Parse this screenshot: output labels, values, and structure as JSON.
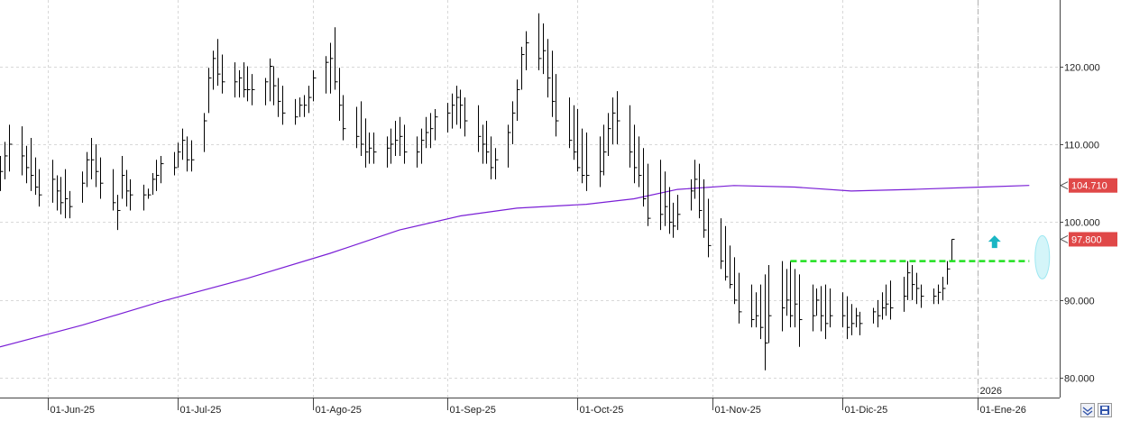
{
  "chart_data": {
    "type": "ohlc",
    "title": "",
    "xlabel": "",
    "ylabel": "",
    "ylim": [
      77.5,
      128.5
    ],
    "xlim": [
      "2025-05-21",
      "2026-01-20"
    ],
    "y_ticks": [
      "80.000",
      "90.000",
      "100.000",
      "110.000",
      "120.000"
    ],
    "y_tick_values": [
      80,
      90,
      100,
      110,
      120
    ],
    "x_ticks": [
      {
        "date": "2025-06-01",
        "label": "01-Jun-25"
      },
      {
        "date": "2025-07-01",
        "label": "01-Jul-25"
      },
      {
        "date": "2025-08-01",
        "label": "01-Ago-25"
      },
      {
        "date": "2025-09-01",
        "label": "01-Sep-25"
      },
      {
        "date": "2025-10-01",
        "label": "01-Oct-25"
      },
      {
        "date": "2025-11-01",
        "label": "01-Nov-25"
      },
      {
        "date": "2025-12-01",
        "label": "01-Dic-25"
      },
      {
        "date": "2026-01-01",
        "label": "01-Ene-26"
      }
    ],
    "year_marker": {
      "date": "2026-01-01",
      "label": "2026"
    },
    "grid": true,
    "price_bars": {
      "start": "2025-05-21",
      "calendar": "weekdays",
      "high": [
        108.5,
        110.3,
        112.5,
        112.3,
        109.8,
        110.8,
        108.3,
        106.8,
        108.0,
        106.0,
        105.8,
        106.8,
        104.0,
        106.5,
        109.0,
        110.8,
        110.0,
        108.3,
        106.8,
        103.5,
        108.5,
        106.7,
        105.5,
        104.8,
        104.3,
        106.3,
        108.0,
        108.5,
        109.0,
        110.2,
        112.0,
        111.0,
        110.5,
        114.0,
        119.8,
        122.0,
        123.5,
        121.5,
        120.5,
        119.5,
        120.5,
        120.0,
        119.0,
        118.5,
        121.0,
        120.0,
        118.5,
        117.5,
        115.8,
        116.0,
        116.3,
        117.5,
        119.5,
        121.3,
        123.0,
        125.0,
        119.8,
        116.3,
        114.8,
        115.5,
        113.3,
        111.5,
        111.5,
        111.0,
        112.0,
        113.0,
        113.5,
        112.5,
        111.0,
        112.0,
        113.5,
        114.0,
        114.5,
        115.3,
        116.5,
        117.5,
        117.0,
        116.0,
        115.0,
        112.5,
        113.0,
        111.0,
        109.5,
        112.5,
        115.5,
        118.3,
        122.5,
        124.5,
        126.8,
        125.5,
        123.5,
        122.0,
        119.0,
        116.0,
        115.0,
        114.5,
        112.0,
        111.5,
        111.0,
        112.5,
        114.0,
        116.0,
        116.8,
        115.0,
        112.5,
        111.0,
        109.5,
        107.5,
        108.0,
        106.5,
        104.5,
        102.5,
        103.5,
        105.5,
        108.0,
        107.5,
        105.5,
        103.0,
        100.5,
        99.5,
        97.0,
        95.5,
        93.5,
        92.0,
        91.0,
        92.0,
        93.3,
        94.5,
        95.0,
        94.0,
        95.0,
        94.0,
        93.3,
        92.0,
        91.5,
        91.8,
        92.0,
        91.5,
        91.0,
        90.5,
        89.5,
        89.0,
        88.5,
        89.0,
        90.0,
        91.0,
        92.0,
        92.5,
        93.0,
        95.0,
        94.5,
        93.5,
        92.0,
        91.5,
        92.0,
        93.0,
        95.0,
        97.8
      ],
      "low": [
        104.0,
        105.5,
        106.5,
        106.0,
        105.0,
        104.0,
        103.5,
        102.0,
        102.5,
        101.5,
        101.0,
        100.5,
        100.5,
        102.5,
        104.5,
        105.5,
        104.5,
        103.0,
        101.5,
        99.0,
        103.0,
        102.0,
        101.5,
        101.5,
        103.0,
        103.5,
        104.0,
        105.0,
        106.0,
        107.0,
        108.0,
        106.5,
        106.5,
        109.0,
        114.0,
        117.0,
        117.5,
        116.5,
        116.0,
        116.0,
        116.0,
        115.5,
        115.0,
        115.0,
        115.5,
        115.0,
        113.5,
        112.5,
        112.5,
        113.5,
        113.5,
        114.0,
        115.5,
        116.5,
        116.5,
        117.0,
        113.0,
        110.5,
        109.5,
        108.5,
        107.0,
        107.5,
        107.5,
        107.0,
        107.5,
        108.5,
        108.5,
        107.5,
        107.0,
        107.5,
        109.5,
        109.5,
        110.5,
        111.5,
        112.0,
        112.5,
        112.0,
        111.0,
        109.0,
        107.5,
        107.5,
        105.5,
        105.5,
        107.0,
        110.0,
        113.0,
        117.0,
        119.5,
        119.5,
        119.0,
        116.0,
        113.5,
        111.0,
        109.5,
        108.0,
        106.5,
        105.0,
        104.0,
        104.5,
        106.0,
        108.5,
        110.0,
        110.0,
        107.0,
        105.0,
        104.5,
        102.0,
        99.5,
        99.0,
        99.5,
        98.5,
        98.0,
        99.0,
        101.5,
        103.0,
        100.5,
        98.0,
        95.5,
        94.0,
        92.5,
        91.5,
        89.5,
        87.0,
        86.5,
        86.5,
        85.0,
        81.0,
        84.5,
        86.0,
        88.0,
        86.5,
        86.5,
        84.0,
        86.0,
        88.0,
        86.0,
        85.0,
        86.5,
        86.5,
        85.0,
        85.5,
        86.5,
        85.5,
        87.0,
        86.5,
        87.5,
        88.0,
        87.5,
        88.5,
        90.0,
        90.0,
        89.5,
        89.0,
        89.5,
        89.5,
        90.0,
        92.0,
        95.0
      ],
      "close": [
        106.5,
        108.5,
        110.0,
        108.5,
        107.0,
        106.0,
        104.5,
        103.5,
        105.5,
        104.0,
        102.5,
        103.0,
        102.0,
        105.0,
        108.0,
        108.0,
        106.5,
        105.0,
        102.5,
        101.5,
        106.0,
        104.0,
        103.5,
        103.5,
        103.5,
        105.5,
        106.0,
        107.5,
        107.0,
        109.0,
        110.5,
        108.0,
        108.0,
        113.0,
        118.5,
        121.0,
        119.0,
        118.0,
        118.0,
        118.5,
        117.0,
        117.0,
        117.0,
        118.0,
        120.0,
        117.5,
        115.5,
        114.0,
        113.5,
        115.0,
        115.0,
        116.0,
        118.5,
        120.5,
        121.0,
        118.0,
        115.0,
        112.0,
        111.0,
        110.0,
        109.0,
        109.5,
        109.0,
        109.5,
        110.0,
        110.5,
        111.0,
        109.0,
        109.0,
        110.5,
        111.5,
        112.0,
        113.5,
        114.0,
        115.0,
        116.0,
        115.0,
        113.0,
        111.0,
        110.0,
        109.0,
        107.0,
        108.0,
        111.5,
        114.0,
        117.0,
        121.5,
        123.0,
        121.0,
        122.0,
        118.5,
        115.5,
        113.0,
        110.5,
        109.0,
        107.0,
        106.0,
        106.0,
        106.5,
        109.0,
        112.0,
        114.0,
        113.0,
        109.0,
        107.0,
        106.0,
        103.0,
        100.5,
        101.0,
        102.0,
        100.0,
        99.5,
        101.0,
        104.0,
        105.5,
        101.5,
        99.0,
        97.0,
        95.0,
        93.0,
        92.0,
        90.0,
        88.5,
        87.5,
        88.0,
        86.5,
        84.5,
        88.0,
        89.0,
        90.0,
        88.0,
        89.5,
        87.5,
        88.0,
        90.0,
        88.0,
        87.0,
        88.0,
        88.0,
        86.5,
        87.0,
        88.0,
        87.0,
        88.5,
        88.0,
        89.0,
        89.5,
        89.0,
        90.5,
        93.5,
        92.0,
        91.5,
        90.5,
        90.5,
        91.0,
        91.5,
        94.0,
        97.8
      ]
    },
    "series": [
      {
        "name": "",
        "type": "line",
        "color": "#7a1fd6",
        "x": [
          "2025-05-21",
          "2025-06-09",
          "2025-06-27",
          "2025-07-17",
          "2025-08-05",
          "2025-08-21",
          "2025-09-04",
          "2025-09-17",
          "2025-10-03",
          "2025-10-14",
          "2025-10-24",
          "2025-11-06",
          "2025-11-20",
          "2025-12-03",
          "2025-12-17",
          "2026-01-02",
          "2026-01-13"
        ],
        "values": [
          84.0,
          86.8,
          89.8,
          92.8,
          96.0,
          99.0,
          100.8,
          101.8,
          102.3,
          103.0,
          104.2,
          104.7,
          104.5,
          104.0,
          104.2,
          104.5,
          104.71
        ]
      }
    ],
    "horizontal_lines": [
      {
        "name": "",
        "y": 95.0,
        "x_start": "2025-11-19",
        "x_end": "2026-01-13",
        "color": "#20e020",
        "style": "dashed"
      }
    ],
    "price_labels": [
      {
        "value": "104.710",
        "y": 104.71,
        "color": "#e04848"
      },
      {
        "value": "97.800",
        "y": 97.8,
        "color": "#e04848"
      }
    ],
    "annotations": [
      {
        "type": "arrow-up",
        "date": "2026-01-05",
        "y": 97.5,
        "color": "#1ab6c4"
      },
      {
        "type": "ellipse",
        "date": "2026-01-16",
        "y": 95.5,
        "color": "#9fe8f2"
      }
    ]
  },
  "ui": {
    "corner_buttons": [
      {
        "name": "collapse-icon",
        "glyph": "≈"
      },
      {
        "name": "save-icon",
        "glyph": "▣"
      }
    ]
  }
}
